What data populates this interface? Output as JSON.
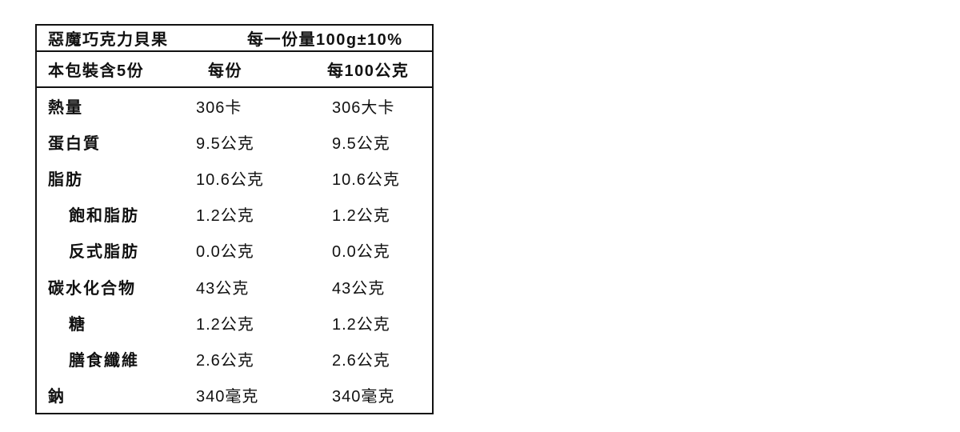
{
  "table": {
    "title_row": {
      "product_name": "惡魔巧克力貝果",
      "serving_size": "每一份量100g±10%"
    },
    "header_row": {
      "servings_per_package": "本包裝含5份",
      "col_per_serving": "每份",
      "col_per_100g": "每100公克"
    },
    "rows": [
      {
        "label": "熱量",
        "indent": false,
        "per_serving": "306卡",
        "per_100g": "306大卡"
      },
      {
        "label": "蛋白質",
        "indent": false,
        "per_serving": "9.5公克",
        "per_100g": "9.5公克"
      },
      {
        "label": "脂肪",
        "indent": false,
        "per_serving": "10.6公克",
        "per_100g": "10.6公克"
      },
      {
        "label": "飽和脂肪",
        "indent": true,
        "per_serving": "1.2公克",
        "per_100g": "1.2公克"
      },
      {
        "label": "反式脂肪",
        "indent": true,
        "per_serving": "0.0公克",
        "per_100g": "0.0公克"
      },
      {
        "label": "碳水化合物",
        "indent": false,
        "per_serving": "43公克",
        "per_100g": "43公克"
      },
      {
        "label": "糖",
        "indent": true,
        "per_serving": "1.2公克",
        "per_100g": "1.2公克"
      },
      {
        "label": "膳食纖維",
        "indent": true,
        "per_serving": "2.6公克",
        "per_100g": "2.6公克"
      },
      {
        "label": "鈉",
        "indent": false,
        "per_serving": "340毫克",
        "per_100g": "340毫克"
      }
    ],
    "colors": {
      "border": "#111111",
      "text": "#111111",
      "background": "#ffffff"
    }
  }
}
